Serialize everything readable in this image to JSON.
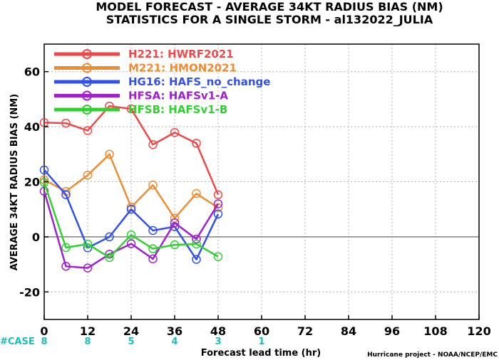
{
  "title_line1": "MODEL FORECAST - AVERAGE 34KT RADIUS BIAS (NM)",
  "title_line2": "STATISTICS FOR A SINGLE STORM - al132022_JULIA",
  "credit": "Hurricane project - NOAA/NCEP/EMC",
  "case_label": "#CASE",
  "colors": {
    "zero_line": "#808080",
    "grid": "#b0b0b0",
    "cases": "#1bbcbc"
  },
  "chart_data": {
    "type": "line",
    "xlabel": "Forecast lead time (hr)",
    "ylabel": "AVERAGE 34KT RADIUS BIAS (NM)",
    "xlim": [
      0,
      120
    ],
    "ylim": [
      -30,
      70
    ],
    "xticks": [
      0,
      12,
      24,
      36,
      48,
      60,
      72,
      84,
      96,
      108,
      120
    ],
    "yticks": [
      -20,
      0,
      20,
      40,
      60
    ],
    "grid": true,
    "legend_position": "top-left",
    "x": [
      0,
      6,
      12,
      18,
      24,
      30,
      36,
      42,
      48
    ],
    "series": [
      {
        "code": "H221",
        "name": "HWRF2021",
        "color": "#f04848",
        "values": [
          41.5,
          41.3,
          38.6,
          47.5,
          46.5,
          33.5,
          37.9,
          34,
          15.3
        ]
      },
      {
        "code": "M221",
        "name": "HMON2021",
        "color": "#f08c30",
        "values": [
          20.7,
          16.5,
          22.4,
          30,
          10.8,
          18.8,
          6.8,
          15.7,
          10.6
        ]
      },
      {
        "code": "HG16",
        "name": "HAFS_no_change",
        "color": "#3050f0",
        "values": [
          24.3,
          15.3,
          -4,
          0,
          10,
          2.3,
          3.7,
          -8.2,
          8.3
        ]
      },
      {
        "code": "HFSA",
        "name": "HAFSv1-A",
        "color": "#a020d0",
        "values": [
          16.6,
          -10.7,
          -11.3,
          -6.3,
          -2.5,
          -8,
          5.1,
          -0.8,
          12
        ]
      },
      {
        "code": "HFSB",
        "name": "HAFSv1-B",
        "color": "#30d030",
        "values": [
          19.8,
          -3.9,
          -2.6,
          -7.5,
          0.7,
          -4.3,
          -2.9,
          -2.6,
          -7.2
        ]
      }
    ],
    "cases": [
      {
        "x": 0,
        "n": "8"
      },
      {
        "x": 12,
        "n": "8"
      },
      {
        "x": 24,
        "n": "5"
      },
      {
        "x": 36,
        "n": "4"
      },
      {
        "x": 48,
        "n": "3"
      },
      {
        "x": 60,
        "n": "1"
      }
    ]
  }
}
